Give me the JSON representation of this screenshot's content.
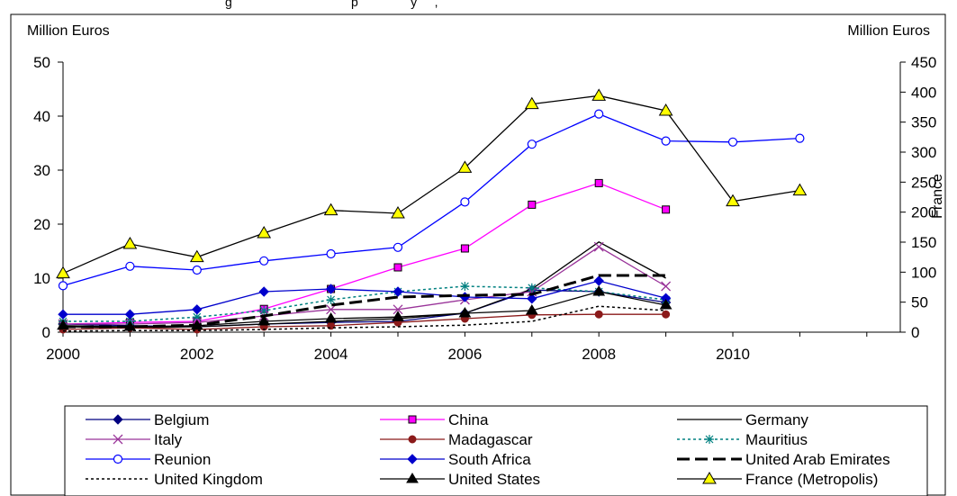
{
  "header_fragment": "g                                  p               y     ,",
  "chart_data": {
    "type": "line",
    "x_ticks": [
      2000,
      2002,
      2004,
      2006,
      2008,
      2010
    ],
    "left_axis": {
      "label": "Million Euros",
      "ylim": [
        0,
        50
      ],
      "ticks": [
        0,
        10,
        20,
        30,
        40,
        50
      ]
    },
    "right_axis": {
      "label": "Million Euros",
      "title": "France",
      "ylim": [
        0,
        450
      ],
      "ticks": [
        0,
        50,
        100,
        150,
        200,
        250,
        300,
        350,
        400,
        450
      ]
    },
    "grid": false,
    "legend_position": "bottom",
    "series": [
      {
        "name": "Belgium",
        "axis": "left",
        "color": "#000080",
        "dash": "",
        "marker": "diamond",
        "x": [
          2000,
          2001,
          2002,
          2003,
          2004,
          2005,
          2006,
          2007,
          2008,
          2009
        ],
        "y": [
          1.5,
          1.2,
          1.0,
          1.5,
          1.8,
          2.0,
          3.5,
          7.8,
          7.5,
          5.5
        ]
      },
      {
        "name": "China",
        "axis": "left",
        "color": "#ff00ff",
        "dash": "",
        "marker": "square",
        "x": [
          2000,
          2001,
          2002,
          2003,
          2004,
          2005,
          2006,
          2007,
          2008,
          2009
        ],
        "y": [
          1.5,
          1.8,
          2.0,
          4.3,
          8.0,
          12.0,
          15.5,
          23.6,
          27.6,
          22.7
        ]
      },
      {
        "name": "Germany",
        "axis": "left",
        "color": "#000000",
        "dash": "",
        "marker": "none",
        "x": [
          2000,
          2001,
          2002,
          2003,
          2004,
          2005,
          2006,
          2007,
          2008,
          2009
        ],
        "y": [
          1.0,
          0.8,
          1.0,
          1.5,
          2.0,
          2.5,
          3.5,
          8.0,
          16.7,
          10.0
        ]
      },
      {
        "name": "Italy",
        "axis": "left",
        "color": "#993399",
        "dash": "",
        "marker": "x",
        "x": [
          2000,
          2001,
          2002,
          2003,
          2004,
          2005,
          2006,
          2007,
          2008,
          2009
        ],
        "y": [
          1.5,
          1.5,
          1.8,
          3.0,
          4.2,
          4.2,
          6.0,
          7.5,
          15.8,
          8.5
        ]
      },
      {
        "name": "Madagascar",
        "axis": "left",
        "color": "#8b1a1a",
        "dash": "",
        "marker": "circle-filled",
        "x": [
          2000,
          2001,
          2002,
          2003,
          2004,
          2005,
          2006,
          2007,
          2008,
          2009
        ],
        "y": [
          0.5,
          0.8,
          0.5,
          1.0,
          1.2,
          1.8,
          2.5,
          3.2,
          3.3,
          3.3
        ]
      },
      {
        "name": "Mauritius",
        "axis": "left",
        "color": "#008080",
        "dash": "3,3",
        "marker": "asterisk",
        "x": [
          2000,
          2001,
          2002,
          2003,
          2004,
          2005,
          2006,
          2007,
          2008,
          2009
        ],
        "y": [
          2.0,
          2.0,
          2.8,
          4.0,
          6.0,
          7.5,
          8.5,
          8.2,
          7.5,
          6.0
        ]
      },
      {
        "name": "Reunion",
        "axis": "left",
        "color": "#0000ff",
        "dash": "",
        "marker": "circle-open",
        "x": [
          2000,
          2001,
          2002,
          2003,
          2004,
          2005,
          2006,
          2007,
          2008,
          2009,
          2010,
          2011
        ],
        "y": [
          8.6,
          12.2,
          11.5,
          13.2,
          14.5,
          15.7,
          24.1,
          34.8,
          40.4,
          35.4,
          35.2,
          35.9
        ]
      },
      {
        "name": "South Africa",
        "axis": "left",
        "color": "#0000cc",
        "dash": "",
        "marker": "diamond",
        "x": [
          2000,
          2001,
          2002,
          2003,
          2004,
          2005,
          2006,
          2007,
          2008,
          2009
        ],
        "y": [
          3.3,
          3.3,
          4.2,
          7.5,
          8.0,
          7.5,
          6.5,
          6.2,
          9.5,
          6.3
        ]
      },
      {
        "name": "United Arab Emirates",
        "axis": "left",
        "color": "#000000",
        "dash": "14,6",
        "marker": "none",
        "x": [
          2000,
          2001,
          2002,
          2003,
          2004,
          2005,
          2006,
          2007,
          2008,
          2009
        ],
        "y": [
          1.0,
          1.0,
          1.3,
          3.0,
          5.0,
          6.5,
          6.8,
          7.0,
          10.5,
          10.5
        ]
      },
      {
        "name": "United Kingdom",
        "axis": "left",
        "color": "#000000",
        "dash": "3,3",
        "marker": "none",
        "x": [
          2000,
          2001,
          2002,
          2003,
          2004,
          2005,
          2006,
          2007,
          2008,
          2009
        ],
        "y": [
          0.2,
          0.3,
          0.3,
          0.5,
          0.8,
          1.0,
          1.3,
          2.0,
          4.8,
          4.0
        ]
      },
      {
        "name": "United States",
        "axis": "left",
        "color": "#000000",
        "dash": "",
        "marker": "triangle-filled",
        "x": [
          2000,
          2001,
          2002,
          2003,
          2004,
          2005,
          2006,
          2007,
          2008,
          2009
        ],
        "y": [
          1.2,
          1.0,
          1.2,
          2.0,
          2.5,
          2.8,
          3.5,
          4.0,
          7.5,
          5.0
        ]
      },
      {
        "name": "France (Metropolis)",
        "axis": "right",
        "color": "#000000",
        "dash": "",
        "marker": "triangle-yellow",
        "x": [
          2000,
          2001,
          2002,
          2003,
          2004,
          2005,
          2006,
          2007,
          2008,
          2009,
          2010,
          2011
        ],
        "y": [
          98,
          147,
          125,
          165,
          203,
          198,
          274,
          380,
          394,
          369,
          218,
          236
        ]
      }
    ]
  }
}
